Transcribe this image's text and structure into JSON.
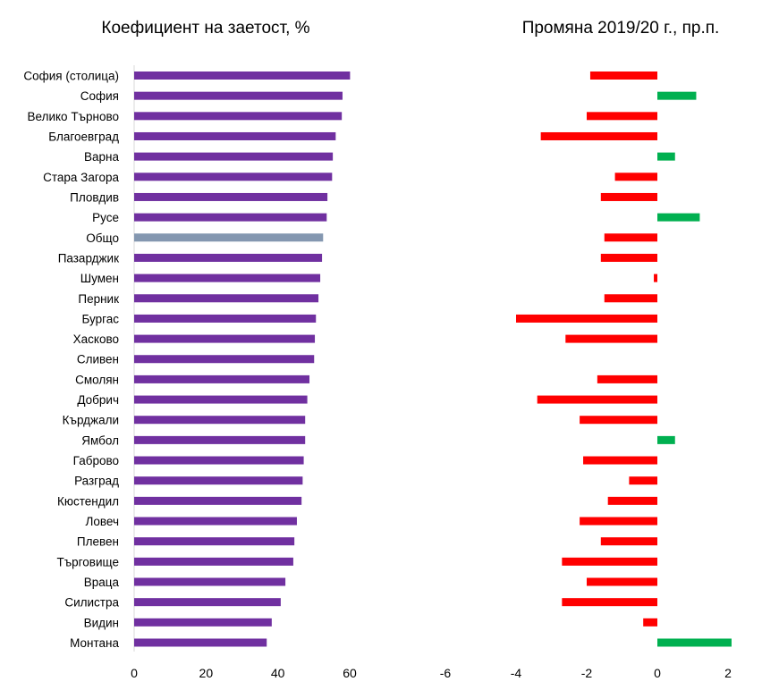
{
  "chart_data": [
    {
      "type": "bar",
      "orientation": "horizontal",
      "title": "Коефициент на заетост, %",
      "xlim": [
        0,
        60
      ],
      "xticks": [
        "0",
        "20",
        "40",
        "60"
      ],
      "grid": false,
      "categories": [
        "София (столица)",
        "София",
        "Велико Търново",
        "Благоевград",
        "Варна",
        "Стара Загора",
        "Пловдив",
        "Русе",
        "Общо",
        "Пазарджик",
        "Шумен",
        "Перник",
        "Бургас",
        "Хасково",
        "Сливен",
        "Смолян",
        "Добрич",
        "Кърджали",
        "Ямбол",
        "Габрово",
        "Разград",
        "Кюстендил",
        "Ловеч",
        "Плевен",
        "Търговище",
        "Враца",
        "Силистра",
        "Видин",
        "Монтана"
      ],
      "values": [
        60.1,
        58.0,
        57.8,
        56.1,
        55.3,
        55.1,
        53.8,
        53.6,
        52.6,
        52.3,
        51.8,
        51.3,
        50.6,
        50.3,
        50.1,
        48.8,
        48.2,
        47.6,
        47.6,
        47.2,
        46.9,
        46.6,
        45.3,
        44.6,
        44.3,
        42.1,
        40.8,
        38.3,
        36.9
      ],
      "colors": {
        "default": "#7030A0",
        "total": "#8497B0"
      },
      "highlight_category": "Общо"
    },
    {
      "type": "bar",
      "orientation": "horizontal",
      "title": "Промяна 2019/20 г., пр.п.",
      "xlim": [
        -6,
        2
      ],
      "xticks": [
        "-6",
        "-4",
        "-2",
        "0",
        "2"
      ],
      "grid": false,
      "categories": [
        "София (столица)",
        "София",
        "Велико Търново",
        "Благоевград",
        "Варна",
        "Стара Загора",
        "Пловдив",
        "Русе",
        "Общо",
        "Пазарджик",
        "Шумен",
        "Перник",
        "Бургас",
        "Хасково",
        "Сливен",
        "Смолян",
        "Добрич",
        "Кърджали",
        "Ямбол",
        "Габрово",
        "Разград",
        "Кюстендил",
        "Ловеч",
        "Плевен",
        "Търговище",
        "Враца",
        "Силистра",
        "Видин",
        "Монтана"
      ],
      "values": [
        -1.9,
        1.1,
        -2.0,
        -3.3,
        0.5,
        -1.2,
        -1.6,
        1.2,
        -1.5,
        -1.6,
        -0.1,
        -1.5,
        -4.0,
        -2.6,
        0.0,
        -1.7,
        -3.4,
        -2.2,
        0.5,
        -2.1,
        -0.8,
        -1.4,
        -2.2,
        -1.6,
        -2.7,
        -2.0,
        -2.7,
        -0.4,
        2.1
      ],
      "colors": {
        "negative": "#FF0000",
        "positive": "#00B050"
      }
    }
  ]
}
